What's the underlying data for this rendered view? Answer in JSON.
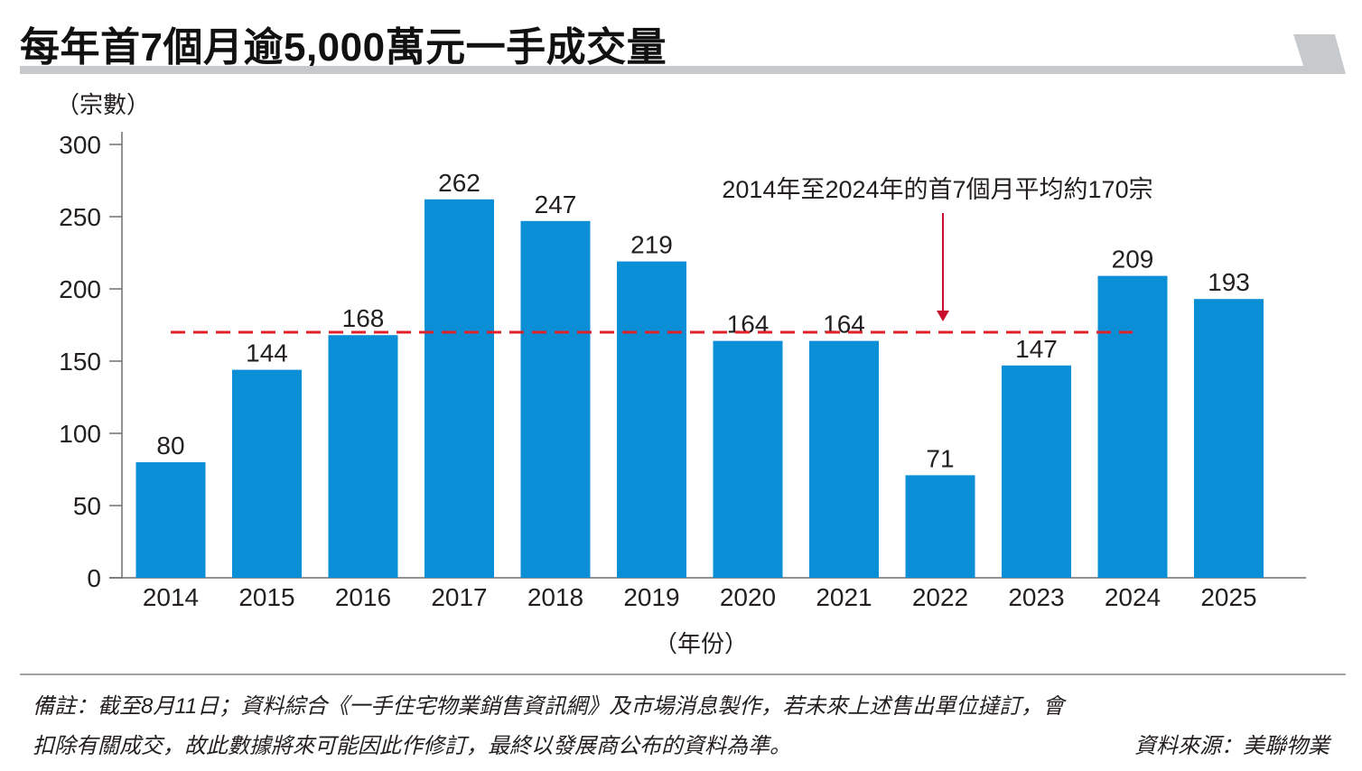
{
  "title": "每年首7個月逾5,000萬元一手成交量",
  "chart_data": {
    "type": "bar",
    "categories": [
      "2014",
      "2015",
      "2016",
      "2017",
      "2018",
      "2019",
      "2020",
      "2021",
      "2022",
      "2023",
      "2024",
      "2025"
    ],
    "values": [
      80,
      144,
      168,
      262,
      247,
      219,
      164,
      164,
      71,
      147,
      209,
      193
    ],
    "ylabel": "（宗數）",
    "xlabel": "（年份）",
    "ylim": [
      0,
      300
    ],
    "yticks": [
      0,
      50,
      100,
      150,
      200,
      250,
      300
    ],
    "grid": false,
    "average_line": {
      "value": 170,
      "label": "2014年至2024年的首7個月平均約170宗",
      "from": "2014",
      "to": "2024"
    },
    "colors": {
      "bar": "#0a8fd6",
      "average": "#e0202a",
      "arrow": "#c8102e",
      "axis": "#6d6e71"
    }
  },
  "notes": {
    "line1": "備註：截至8月11日；資料綜合《一手住宅物業銷售資訊網》及市場消息製作，若未來上述售出單位撻訂，會",
    "line2": "扣除有關成交，故此數據將來可能因此作修訂，最終以發展商公布的資料為準。",
    "source": "資料來源：美聯物業"
  }
}
